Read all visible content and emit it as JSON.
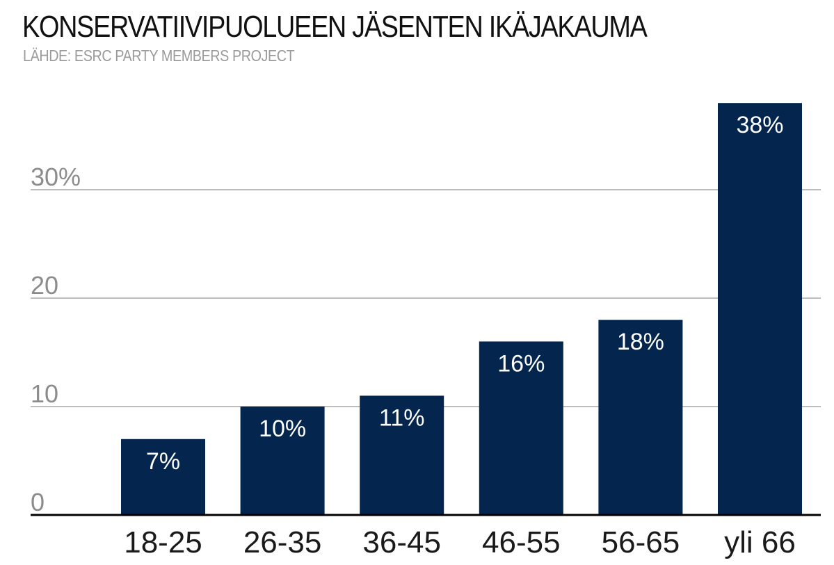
{
  "chart_data": {
    "type": "bar",
    "title": "KONSERVATIIVIPUOLUEEN JÄSENTEN IKÄJAKAUMA",
    "subtitle": "LÄHDE: ESRC PARTY MEMBERS PROJECT",
    "xlabel": "",
    "ylabel": "",
    "categories": [
      "18-25",
      "26-35",
      "36-45",
      "46-55",
      "56-65",
      "yli 66"
    ],
    "values": [
      7,
      10,
      11,
      16,
      18,
      38
    ],
    "data_labels": [
      "7%",
      "10%",
      "11%",
      "16%",
      "18%",
      "38%"
    ],
    "ylim": [
      0,
      38
    ],
    "y_ticks": [
      0,
      10,
      20,
      30
    ],
    "y_tick_labels": [
      "0",
      "10",
      "20",
      "30%"
    ],
    "grid": true,
    "bar_color": "#04254e",
    "grid_color": "#bdbdbd",
    "axis_color": "#000000"
  }
}
